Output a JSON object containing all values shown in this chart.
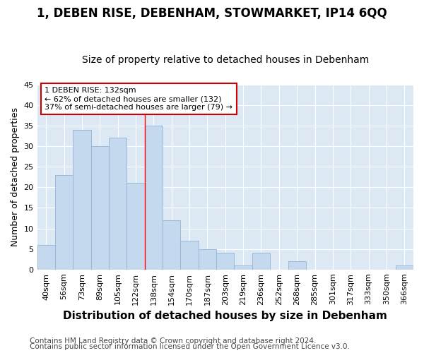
{
  "title": "1, DEBEN RISE, DEBENHAM, STOWMARKET, IP14 6QQ",
  "subtitle": "Size of property relative to detached houses in Debenham",
  "xlabel": "Distribution of detached houses by size in Debenham",
  "ylabel": "Number of detached properties",
  "bar_color": "#c5d9ee",
  "bar_edge_color": "#91b4d5",
  "categories": [
    "40sqm",
    "56sqm",
    "73sqm",
    "89sqm",
    "105sqm",
    "122sqm",
    "138sqm",
    "154sqm",
    "170sqm",
    "187sqm",
    "203sqm",
    "219sqm",
    "236sqm",
    "252sqm",
    "268sqm",
    "285sqm",
    "301sqm",
    "317sqm",
    "333sqm",
    "350sqm",
    "366sqm"
  ],
  "values": [
    6,
    23,
    34,
    30,
    32,
    21,
    35,
    12,
    7,
    5,
    4,
    1,
    4,
    0,
    2,
    0,
    0,
    0,
    0,
    0,
    1
  ],
  "ylim": [
    0,
    45
  ],
  "yticks": [
    0,
    5,
    10,
    15,
    20,
    25,
    30,
    35,
    40,
    45
  ],
  "red_line_index": 6,
  "annotation_title": "1 DEBEN RISE: 132sqm",
  "annotation_line1": "← 62% of detached houses are smaller (132)",
  "annotation_line2": "37% of semi-detached houses are larger (79) →",
  "annotation_box_color": "#ffffff",
  "annotation_box_edge_color": "#cc0000",
  "footer_line1": "Contains HM Land Registry data © Crown copyright and database right 2024.",
  "footer_line2": "Contains public sector information licensed under the Open Government Licence v3.0.",
  "fig_bg_color": "#ffffff",
  "plot_bg_color": "#dce9f5",
  "grid_color": "#ffffff",
  "title_fontsize": 12,
  "subtitle_fontsize": 10,
  "xlabel_fontsize": 11,
  "ylabel_fontsize": 9,
  "tick_fontsize": 8,
  "footer_fontsize": 7.5
}
